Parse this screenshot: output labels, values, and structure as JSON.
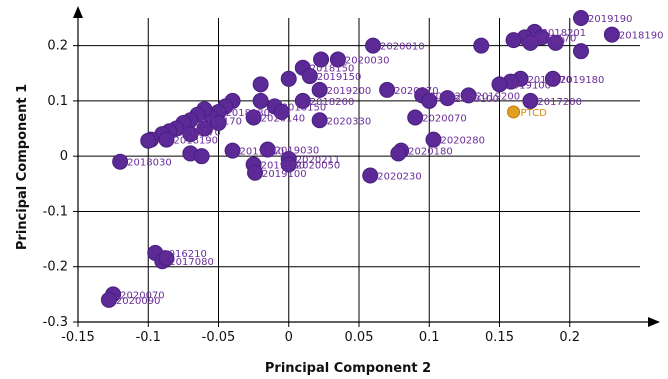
{
  "chart_data": {
    "type": "scatter",
    "xlabel": "Principal Component 2",
    "ylabel": "Principal Component 1",
    "xlim": [
      -0.15,
      0.25
    ],
    "ylim": [
      -0.3,
      0.25
    ],
    "xticks": [
      "-0.15",
      "-0.1",
      "-0.05",
      "0",
      "0.05",
      "0.1",
      "0.15",
      "0.2"
    ],
    "xtick_values": [
      -0.15,
      -0.1,
      -0.05,
      0,
      0.05,
      0.1,
      0.15,
      0.2
    ],
    "yticks": [
      "-0.3",
      "-0.2",
      "-0.1",
      "0",
      "0.1",
      "0.2"
    ],
    "ytick_values": [
      -0.3,
      -0.2,
      -0.1,
      0,
      0.1,
      0.2
    ],
    "grid": true,
    "colors": {
      "point": "#5b2a96",
      "point_edge": "#4a1f80",
      "label": "#6a2e9a",
      "highlight": "#e0a020",
      "highlight_edge": "#c07810",
      "highlight_label": "#d4880f",
      "grid": "#000000"
    },
    "points": [
      {
        "x": 0.208,
        "y": 0.25,
        "label": "2019190"
      },
      {
        "x": 0.23,
        "y": 0.22,
        "label": "2018190"
      },
      {
        "x": 0.175,
        "y": 0.225,
        "label": "2018201"
      },
      {
        "x": 0.168,
        "y": 0.215,
        "label": "2018170"
      },
      {
        "x": 0.16,
        "y": 0.21,
        "label": "2018180"
      },
      {
        "x": 0.18,
        "y": 0.215,
        "label": ""
      },
      {
        "x": 0.19,
        "y": 0.205,
        "label": ""
      },
      {
        "x": 0.172,
        "y": 0.205,
        "label": ""
      },
      {
        "x": 0.208,
        "y": 0.19,
        "label": ""
      },
      {
        "x": 0.137,
        "y": 0.2,
        "label": ""
      },
      {
        "x": 0.188,
        "y": 0.14,
        "label": "2019180"
      },
      {
        "x": 0.165,
        "y": 0.14,
        "label": "2019170"
      },
      {
        "x": 0.158,
        "y": 0.135,
        "label": ""
      },
      {
        "x": 0.15,
        "y": 0.13,
        "label": "2019100"
      },
      {
        "x": 0.172,
        "y": 0.1,
        "label": "2017200"
      },
      {
        "x": 0.16,
        "y": 0.08,
        "label": "PTCD"
      },
      {
        "x": 0.06,
        "y": 0.2,
        "label": "2020010"
      },
      {
        "x": 0.035,
        "y": 0.175,
        "label": "2020030"
      },
      {
        "x": 0.023,
        "y": 0.175,
        "label": ""
      },
      {
        "x": 0.01,
        "y": 0.16,
        "label": "2018150"
      },
      {
        "x": 0.015,
        "y": 0.145,
        "label": "2019150"
      },
      {
        "x": 0.0,
        "y": 0.14,
        "label": ""
      },
      {
        "x": -0.02,
        "y": 0.13,
        "label": ""
      },
      {
        "x": 0.07,
        "y": 0.12,
        "label": "2020070"
      },
      {
        "x": 0.095,
        "y": 0.11,
        "label": "2020270"
      },
      {
        "x": 0.113,
        "y": 0.105,
        "label": "2020100"
      },
      {
        "x": 0.128,
        "y": 0.11,
        "label": "2019200"
      },
      {
        "x": 0.1,
        "y": 0.1,
        "label": ""
      },
      {
        "x": 0.09,
        "y": 0.07,
        "label": "2020070"
      },
      {
        "x": 0.103,
        "y": 0.03,
        "label": "2020280"
      },
      {
        "x": 0.08,
        "y": 0.01,
        "label": "2020180"
      },
      {
        "x": 0.078,
        "y": 0.005,
        "label": ""
      },
      {
        "x": 0.058,
        "y": -0.035,
        "label": "2020230"
      },
      {
        "x": 0.022,
        "y": 0.12,
        "label": "2019200"
      },
      {
        "x": 0.01,
        "y": 0.1,
        "label": "2018200"
      },
      {
        "x": 0.022,
        "y": 0.065,
        "label": "2020330"
      },
      {
        "x": -0.02,
        "y": 0.1,
        "label": ""
      },
      {
        "x": -0.01,
        "y": 0.09,
        "label": "2018150"
      },
      {
        "x": -0.005,
        "y": 0.08,
        "label": ""
      },
      {
        "x": -0.025,
        "y": 0.07,
        "label": "2020140"
      },
      {
        "x": -0.04,
        "y": 0.1,
        "label": ""
      },
      {
        "x": -0.045,
        "y": 0.09,
        "label": ""
      },
      {
        "x": -0.05,
        "y": 0.08,
        "label": "2018180"
      },
      {
        "x": -0.055,
        "y": 0.07,
        "label": ""
      },
      {
        "x": -0.06,
        "y": 0.085,
        "label": ""
      },
      {
        "x": -0.065,
        "y": 0.075,
        "label": ""
      },
      {
        "x": -0.07,
        "y": 0.065,
        "label": "2019170"
      },
      {
        "x": -0.075,
        "y": 0.06,
        "label": ""
      },
      {
        "x": -0.08,
        "y": 0.05,
        "label": ""
      },
      {
        "x": -0.085,
        "y": 0.045,
        "label": "2018170"
      },
      {
        "x": -0.09,
        "y": 0.04,
        "label": ""
      },
      {
        "x": -0.087,
        "y": 0.03,
        "label": "2018190"
      },
      {
        "x": -0.098,
        "y": 0.03,
        "label": ""
      },
      {
        "x": -0.1,
        "y": 0.028,
        "label": ""
      },
      {
        "x": -0.07,
        "y": 0.04,
        "label": ""
      },
      {
        "x": -0.06,
        "y": 0.05,
        "label": ""
      },
      {
        "x": -0.05,
        "y": 0.06,
        "label": ""
      },
      {
        "x": -0.12,
        "y": -0.01,
        "label": "2018030"
      },
      {
        "x": -0.07,
        "y": 0.005,
        "label": ""
      },
      {
        "x": -0.062,
        "y": 0.0,
        "label": ""
      },
      {
        "x": -0.04,
        "y": 0.01,
        "label": "2019110"
      },
      {
        "x": -0.015,
        "y": 0.012,
        "label": "2019030"
      },
      {
        "x": 0.0,
        "y": -0.005,
        "label": "2020211"
      },
      {
        "x": 0.0,
        "y": -0.015,
        "label": "2020050"
      },
      {
        "x": -0.025,
        "y": -0.015,
        "label": "2019080"
      },
      {
        "x": -0.024,
        "y": -0.03,
        "label": "2019100"
      },
      {
        "x": -0.095,
        "y": -0.175,
        "label": "2016210"
      },
      {
        "x": -0.09,
        "y": -0.19,
        "label": "2017080"
      },
      {
        "x": -0.087,
        "y": -0.185,
        "label": ""
      },
      {
        "x": -0.125,
        "y": -0.25,
        "label": "2020070"
      },
      {
        "x": -0.128,
        "y": -0.26,
        "label": "2020090"
      }
    ]
  }
}
